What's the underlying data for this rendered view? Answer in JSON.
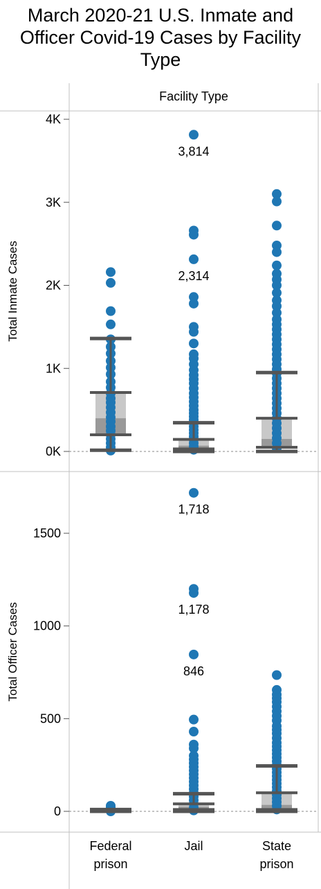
{
  "title": "March 2020-21 U.S. Inmate and Officer Covid-19 Cases by Facility Type",
  "colors": {
    "point": "#1f77b4",
    "whisker": "#555555",
    "box_upper": "#c8c8c8",
    "box_lower": "#999999",
    "frame": "#c0c0c0",
    "zero_line": "#888888"
  },
  "chart_data": {
    "type": "scatter",
    "subtype": "box-and-whisker with individual points",
    "column_header": "Facility Type",
    "categories": [
      "Federal\nprison",
      "Jail",
      "State\nprison"
    ],
    "panels": [
      {
        "ylabel": "Total Inmate Cases",
        "ylim": [
          0,
          4000
        ],
        "ticks": [
          0,
          1000,
          2000,
          3000,
          4000
        ],
        "tick_labels": [
          "0K",
          "1K",
          "2K",
          "3K",
          "4K"
        ],
        "series": [
          {
            "category": "Federal\nprison",
            "points": [
              2160,
              2030,
              1690,
              1530,
              1350,
              1260,
              1180,
              1090,
              1010,
              930,
              840,
              770,
              700,
              640,
              590,
              530,
              470,
              410,
              360,
              300,
              250,
              200,
              150,
              100,
              50,
              10
            ],
            "box": {
              "whisker_low": 15,
              "q1": 200,
              "median": 400,
              "q3": 710,
              "whisker_high": 1360
            }
          },
          {
            "category": "Jail",
            "points": [
              3814,
              2660,
              2610,
              2314,
              1860,
              1780,
              1500,
              1440,
              1300,
              1170,
              1120,
              1050,
              980,
              920,
              870,
              820,
              760,
              700,
              650,
              600,
              550,
              500,
              460,
              420,
              380,
              340,
              300,
              260,
              220,
              180,
              140,
              100,
              60,
              20
            ],
            "box": {
              "whisker_low": 0,
              "q1": 30,
              "median": 70,
              "q3": 145,
              "whisker_high": 345
            },
            "annotations": [
              {
                "y": 3814,
                "text": "3,814"
              },
              {
                "y": 2314,
                "text": "2,314"
              }
            ]
          },
          {
            "category": "State\nprison",
            "points": [
              3100,
              3010,
              2720,
              2480,
              2400,
              2240,
              2140,
              2070,
              2000,
              1910,
              1820,
              1750,
              1670,
              1590,
              1530,
              1470,
              1410,
              1350,
              1290,
              1230,
              1170,
              1110,
              1050,
              990,
              940,
              880,
              820,
              760,
              700,
              640,
              580,
              520,
              460,
              400,
              340,
              280,
              220,
              160,
              100,
              40
            ],
            "box": {
              "whisker_low": 0,
              "q1": 50,
              "median": 150,
              "q3": 400,
              "whisker_high": 950
            }
          }
        ]
      },
      {
        "ylabel": "Total Officer Cases",
        "ylim": [
          0,
          1750
        ],
        "ticks": [
          0,
          500,
          1000,
          1500
        ],
        "tick_labels": [
          "0",
          "500",
          "1000",
          "1500"
        ],
        "series": [
          {
            "category": "Federal\nprison",
            "points": [
              30,
              20,
              12,
              5,
              0
            ],
            "box": {
              "whisker_low": 0,
              "q1": 0,
              "median": 2,
              "q3": 5,
              "whisker_high": 10
            }
          },
          {
            "category": "Jail",
            "points": [
              1718,
              1200,
              1178,
              846,
              495,
              430,
              360,
              340,
              300,
              280,
              260,
              240,
              220,
              200,
              180,
              160,
              140,
              120,
              100,
              80,
              60,
              40,
              20,
              5
            ],
            "box": {
              "whisker_low": 0,
              "q1": 10,
              "median": 25,
              "q3": 40,
              "whisker_high": 95
            },
            "annotations": [
              {
                "y": 1718,
                "text": "1,718"
              },
              {
                "y": 1178,
                "text": "1,178"
              },
              {
                "y": 846,
                "text": "846"
              }
            ]
          },
          {
            "category": "State\nprison",
            "points": [
              735,
              655,
              630,
              610,
              590,
              565,
              540,
              515,
              490,
              460,
              440,
              420,
              395,
              370,
              350,
              330,
              310,
              290,
              270,
              250,
              230,
              210,
              190,
              170,
              150,
              130,
              110,
              90,
              70,
              50,
              30,
              10
            ],
            "box": {
              "whisker_low": 0,
              "q1": 10,
              "median": 35,
              "q3": 100,
              "whisker_high": 245
            }
          }
        ]
      }
    ]
  }
}
